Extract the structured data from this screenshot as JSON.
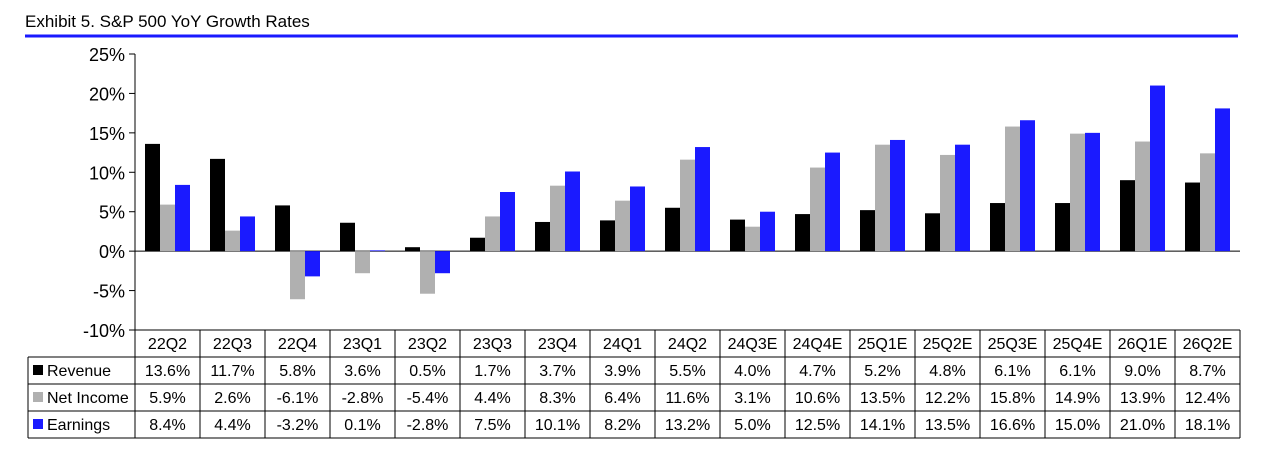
{
  "title": "Exhibit 5.  S&P 500 YoY Growth Rates",
  "chart_data": {
    "type": "bar",
    "title": "Exhibit 5.  S&P 500 YoY Growth Rates",
    "xlabel": "",
    "ylabel": "",
    "ylim": [
      -10,
      25
    ],
    "ytick_step": 5,
    "ytick_labels": [
      "25%",
      "20%",
      "15%",
      "10%",
      "5%",
      "0%",
      "-5%",
      "-10%"
    ],
    "grid": false,
    "legend_placement": "data-table-left",
    "categories": [
      "22Q2",
      "22Q3",
      "22Q4",
      "23Q1",
      "23Q2",
      "23Q3",
      "23Q4",
      "24Q1",
      "24Q2",
      "24Q3E",
      "24Q4E",
      "25Q1E",
      "25Q2E",
      "25Q3E",
      "25Q4E",
      "26Q1E",
      "26Q2E"
    ],
    "series": [
      {
        "name": "Revenue",
        "color": "#000000",
        "values": [
          13.6,
          11.7,
          5.8,
          3.6,
          0.5,
          1.7,
          3.7,
          3.9,
          5.5,
          4.0,
          4.7,
          5.2,
          4.8,
          6.1,
          6.1,
          9.0,
          8.7
        ],
        "labels": [
          "13.6%",
          "11.7%",
          "5.8%",
          "3.6%",
          "0.5%",
          "1.7%",
          "3.7%",
          "3.9%",
          "5.5%",
          "4.0%",
          "4.7%",
          "5.2%",
          "4.8%",
          "6.1%",
          "6.1%",
          "9.0%",
          "8.7%"
        ]
      },
      {
        "name": "Net Income",
        "color": "#b0b0b0",
        "values": [
          5.9,
          2.6,
          -6.1,
          -2.8,
          -5.4,
          4.4,
          8.3,
          6.4,
          11.6,
          3.1,
          10.6,
          13.5,
          12.2,
          15.8,
          14.9,
          13.9,
          12.4
        ],
        "labels": [
          "5.9%",
          "2.6%",
          "-6.1%",
          "-2.8%",
          "-5.4%",
          "4.4%",
          "8.3%",
          "6.4%",
          "11.6%",
          "3.1%",
          "10.6%",
          "13.5%",
          "12.2%",
          "15.8%",
          "14.9%",
          "13.9%",
          "12.4%"
        ]
      },
      {
        "name": "Earnings",
        "color": "#1a1aff",
        "values": [
          8.4,
          4.4,
          -3.2,
          0.1,
          -2.8,
          7.5,
          10.1,
          8.2,
          13.2,
          5.0,
          12.5,
          14.1,
          13.5,
          16.6,
          15.0,
          21.0,
          18.1
        ],
        "labels": [
          "8.4%",
          "4.4%",
          "-3.2%",
          "0.1%",
          "-2.8%",
          "7.5%",
          "10.1%",
          "8.2%",
          "13.2%",
          "5.0%",
          "12.5%",
          "14.1%",
          "13.5%",
          "16.6%",
          "15.0%",
          "21.0%",
          "18.1%"
        ]
      }
    ]
  }
}
